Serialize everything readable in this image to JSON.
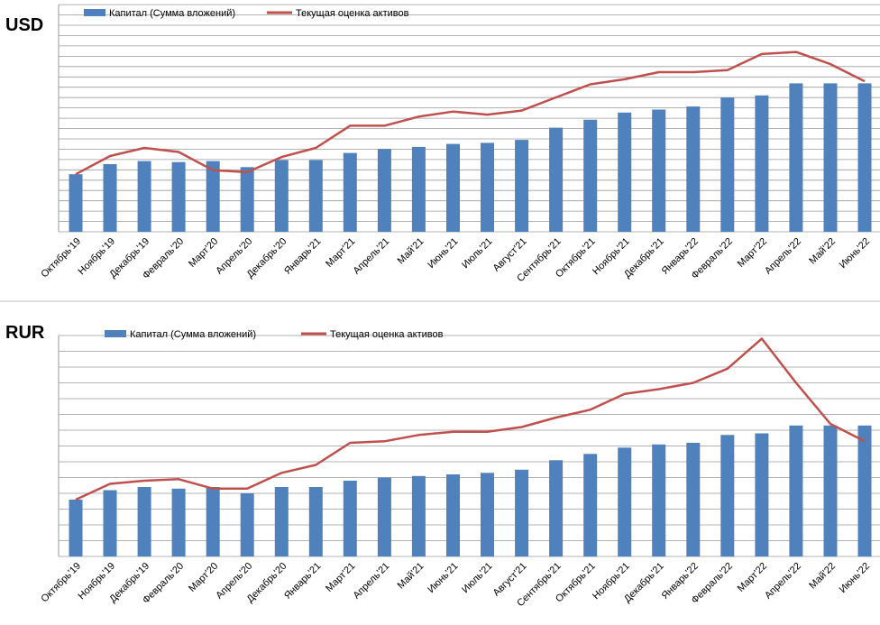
{
  "colors": {
    "bar": "#4f81bd",
    "line": "#c0504d",
    "grid": "#9a9a9a",
    "axis_text": "#000000",
    "separator": "#bfbfbf"
  },
  "chart_data": [
    {
      "type": "bar",
      "title": "USD",
      "xlabel": "",
      "ylabel": "",
      "grid": true,
      "legend_position": "top-left",
      "categories": [
        "Октябрь'19",
        "Ноябрь'19",
        "Декабрь'19",
        "Февраль'20",
        "Март'20",
        "Апрель'20",
        "Декабрь'20",
        "Январь'21",
        "Март'21",
        "Апрель'21",
        "Май'21",
        "Июнь'21",
        "Июль'21",
        "Август'21",
        "Сентябрь'21",
        "Октябрь'21",
        "Ноябрь'21",
        "Декабрь'21",
        "Январь'22",
        "Февраль'22",
        "Март'22",
        "Апрель'22",
        "Май'22",
        "Июнь'22"
      ],
      "series": [
        {
          "name": "Капитал  (Сумма вложений)",
          "kind": "bar",
          "values": [
            5.7,
            6.7,
            7.0,
            6.9,
            7.0,
            6.4,
            7.1,
            7.1,
            7.8,
            8.2,
            8.4,
            8.7,
            8.8,
            9.1,
            10.3,
            11.1,
            11.8,
            12.1,
            12.4,
            13.3,
            13.5,
            14.7,
            14.7,
            14.7
          ]
        },
        {
          "name": "Текущая оценка активов",
          "kind": "line",
          "values": [
            5.7,
            7.5,
            8.3,
            7.9,
            6.1,
            5.9,
            7.4,
            8.3,
            10.5,
            10.5,
            11.4,
            11.9,
            11.6,
            12.0,
            13.3,
            14.6,
            15.1,
            15.8,
            15.8,
            16.0,
            17.6,
            17.8,
            16.6,
            14.9
          ]
        }
      ],
      "ylim": [
        0,
        22.5
      ]
    },
    {
      "type": "bar",
      "title": "RUR",
      "xlabel": "",
      "ylabel": "",
      "grid": true,
      "legend_position": "top-left",
      "categories": [
        "Октябрь'19",
        "Ноябрь'19",
        "Декабрь'19",
        "Февраль'20",
        "Март'20",
        "Апрель'20",
        "Декабрь'20",
        "Январь'21",
        "Март'21",
        "Апрель'21",
        "Май'21",
        "Июнь'21",
        "Июль'21",
        "Август'21",
        "Сентябрь'21",
        "Октябрь'21",
        "Ноябрь'21",
        "Декабрь'21",
        "Январь'22",
        "Февраль'22",
        "Март'22",
        "Апрель'22",
        "Май'22",
        "Июнь'22"
      ],
      "series": [
        {
          "name": "Капитал (Сумма вложений)",
          "kind": "bar",
          "values": [
            3.6,
            4.2,
            4.4,
            4.3,
            4.4,
            4.0,
            4.4,
            4.4,
            4.8,
            5.0,
            5.1,
            5.2,
            5.3,
            5.5,
            6.1,
            6.5,
            6.9,
            7.1,
            7.2,
            7.7,
            7.8,
            8.3,
            8.3,
            8.3
          ]
        },
        {
          "name": "Текущая оценка активов",
          "kind": "line",
          "values": [
            3.6,
            4.6,
            4.8,
            4.9,
            4.3,
            4.3,
            5.3,
            5.8,
            7.2,
            7.3,
            7.7,
            7.9,
            7.9,
            8.2,
            8.8,
            9.3,
            10.3,
            10.6,
            11.0,
            11.9,
            13.8,
            11.0,
            8.4,
            7.3
          ]
        }
      ],
      "ylim": [
        0,
        14
      ]
    }
  ]
}
